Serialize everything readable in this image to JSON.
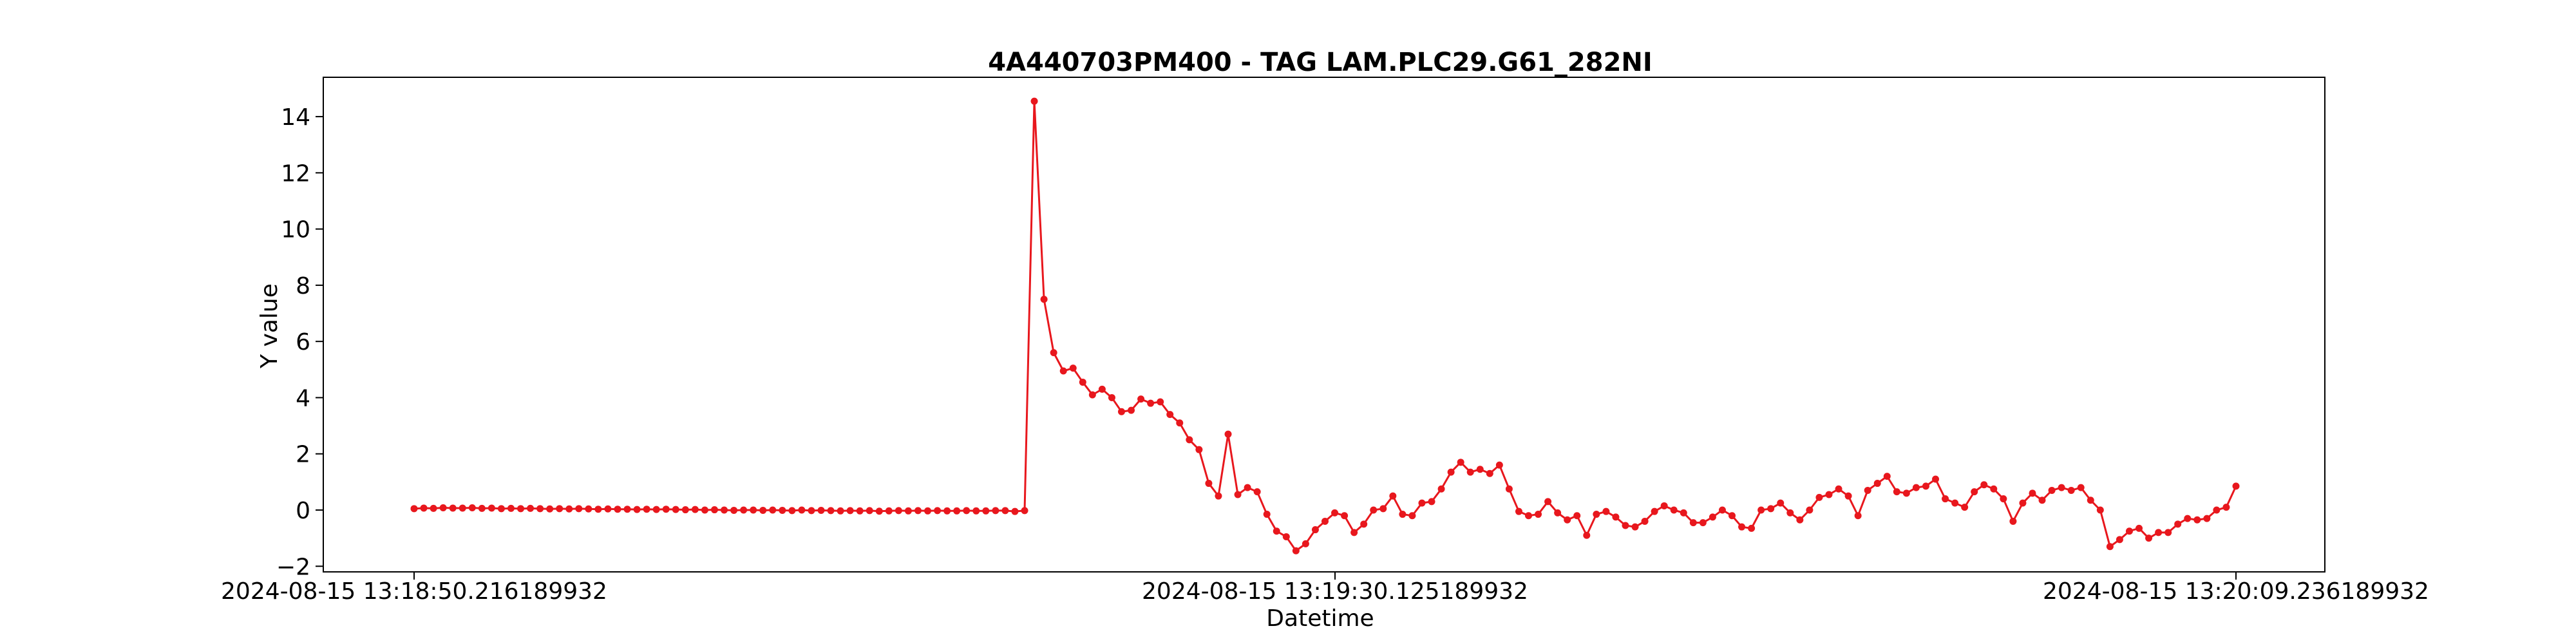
{
  "chart_data": {
    "type": "line",
    "title": "4A440703PM400 - TAG LAM.PLC29.G61_282NI",
    "xlabel": "Datetime",
    "ylabel": "Y value",
    "ylim": [
      -2.2,
      15.4
    ],
    "yticks": [
      -2,
      0,
      2,
      4,
      6,
      8,
      10,
      12,
      14
    ],
    "xticks": [
      "2024-08-15 13:18:50.216189932",
      "2024-08-15 13:19:30.125189932",
      "2024-08-15 13:20:09.236189932"
    ],
    "grid": false,
    "legend": "none",
    "color": "#e8171d",
    "series": [
      {
        "values": [
          0.05,
          0.07,
          0.06,
          0.08,
          0.07,
          0.07,
          0.08,
          0.06,
          0.07,
          0.05,
          0.06,
          0.05,
          0.06,
          0.05,
          0.04,
          0.05,
          0.04,
          0.05,
          0.04,
          0.03,
          0.04,
          0.03,
          0.03,
          0.02,
          0.03,
          0.02,
          0.03,
          0.02,
          0.01,
          0.02,
          0.0,
          0.01,
          0.0,
          -0.01,
          0.0,
          0.0,
          -0.01,
          0.0,
          -0.01,
          -0.02,
          0.0,
          -0.02,
          -0.01,
          -0.02,
          -0.03,
          -0.02,
          -0.03,
          -0.02,
          -0.04,
          -0.03,
          -0.02,
          -0.03,
          -0.02,
          -0.03,
          -0.02,
          -0.03,
          -0.03,
          -0.02,
          -0.03,
          -0.03,
          -0.02,
          -0.02,
          -0.05,
          -0.02,
          14.55,
          7.5,
          5.6,
          4.95,
          5.05,
          4.55,
          4.1,
          4.3,
          4.0,
          3.5,
          3.55,
          3.95,
          3.8,
          3.85,
          3.4,
          3.1,
          2.5,
          2.15,
          0.95,
          0.5,
          2.7,
          0.55,
          0.8,
          0.65,
          -0.15,
          -0.75,
          -0.95,
          -1.45,
          -1.2,
          -0.7,
          -0.4,
          -0.1,
          -0.2,
          -0.8,
          -0.5,
          0.0,
          0.05,
          0.5,
          -0.15,
          -0.2,
          0.25,
          0.3,
          0.75,
          1.35,
          1.7,
          1.35,
          1.45,
          1.3,
          1.6,
          0.75,
          -0.05,
          -0.2,
          -0.15,
          0.3,
          -0.1,
          -0.35,
          -0.2,
          -0.9,
          -0.15,
          -0.05,
          -0.25,
          -0.55,
          -0.6,
          -0.4,
          -0.05,
          0.15,
          0.0,
          -0.1,
          -0.45,
          -0.45,
          -0.25,
          0.0,
          -0.2,
          -0.6,
          -0.65,
          0.0,
          0.05,
          0.25,
          -0.1,
          -0.35,
          0.0,
          0.45,
          0.55,
          0.75,
          0.5,
          -0.2,
          0.7,
          0.95,
          1.2,
          0.65,
          0.6,
          0.8,
          0.85,
          1.1,
          0.4,
          0.25,
          0.1,
          0.65,
          0.9,
          0.75,
          0.4,
          -0.4,
          0.25,
          0.6,
          0.35,
          0.7,
          0.8,
          0.7,
          0.8,
          0.35,
          0.0,
          -1.3,
          -1.05,
          -0.75,
          -0.65,
          -1.0,
          -0.8,
          -0.8,
          -0.5,
          -0.3,
          -0.35,
          -0.3,
          0.0,
          0.1,
          0.85
        ]
      }
    ]
  }
}
